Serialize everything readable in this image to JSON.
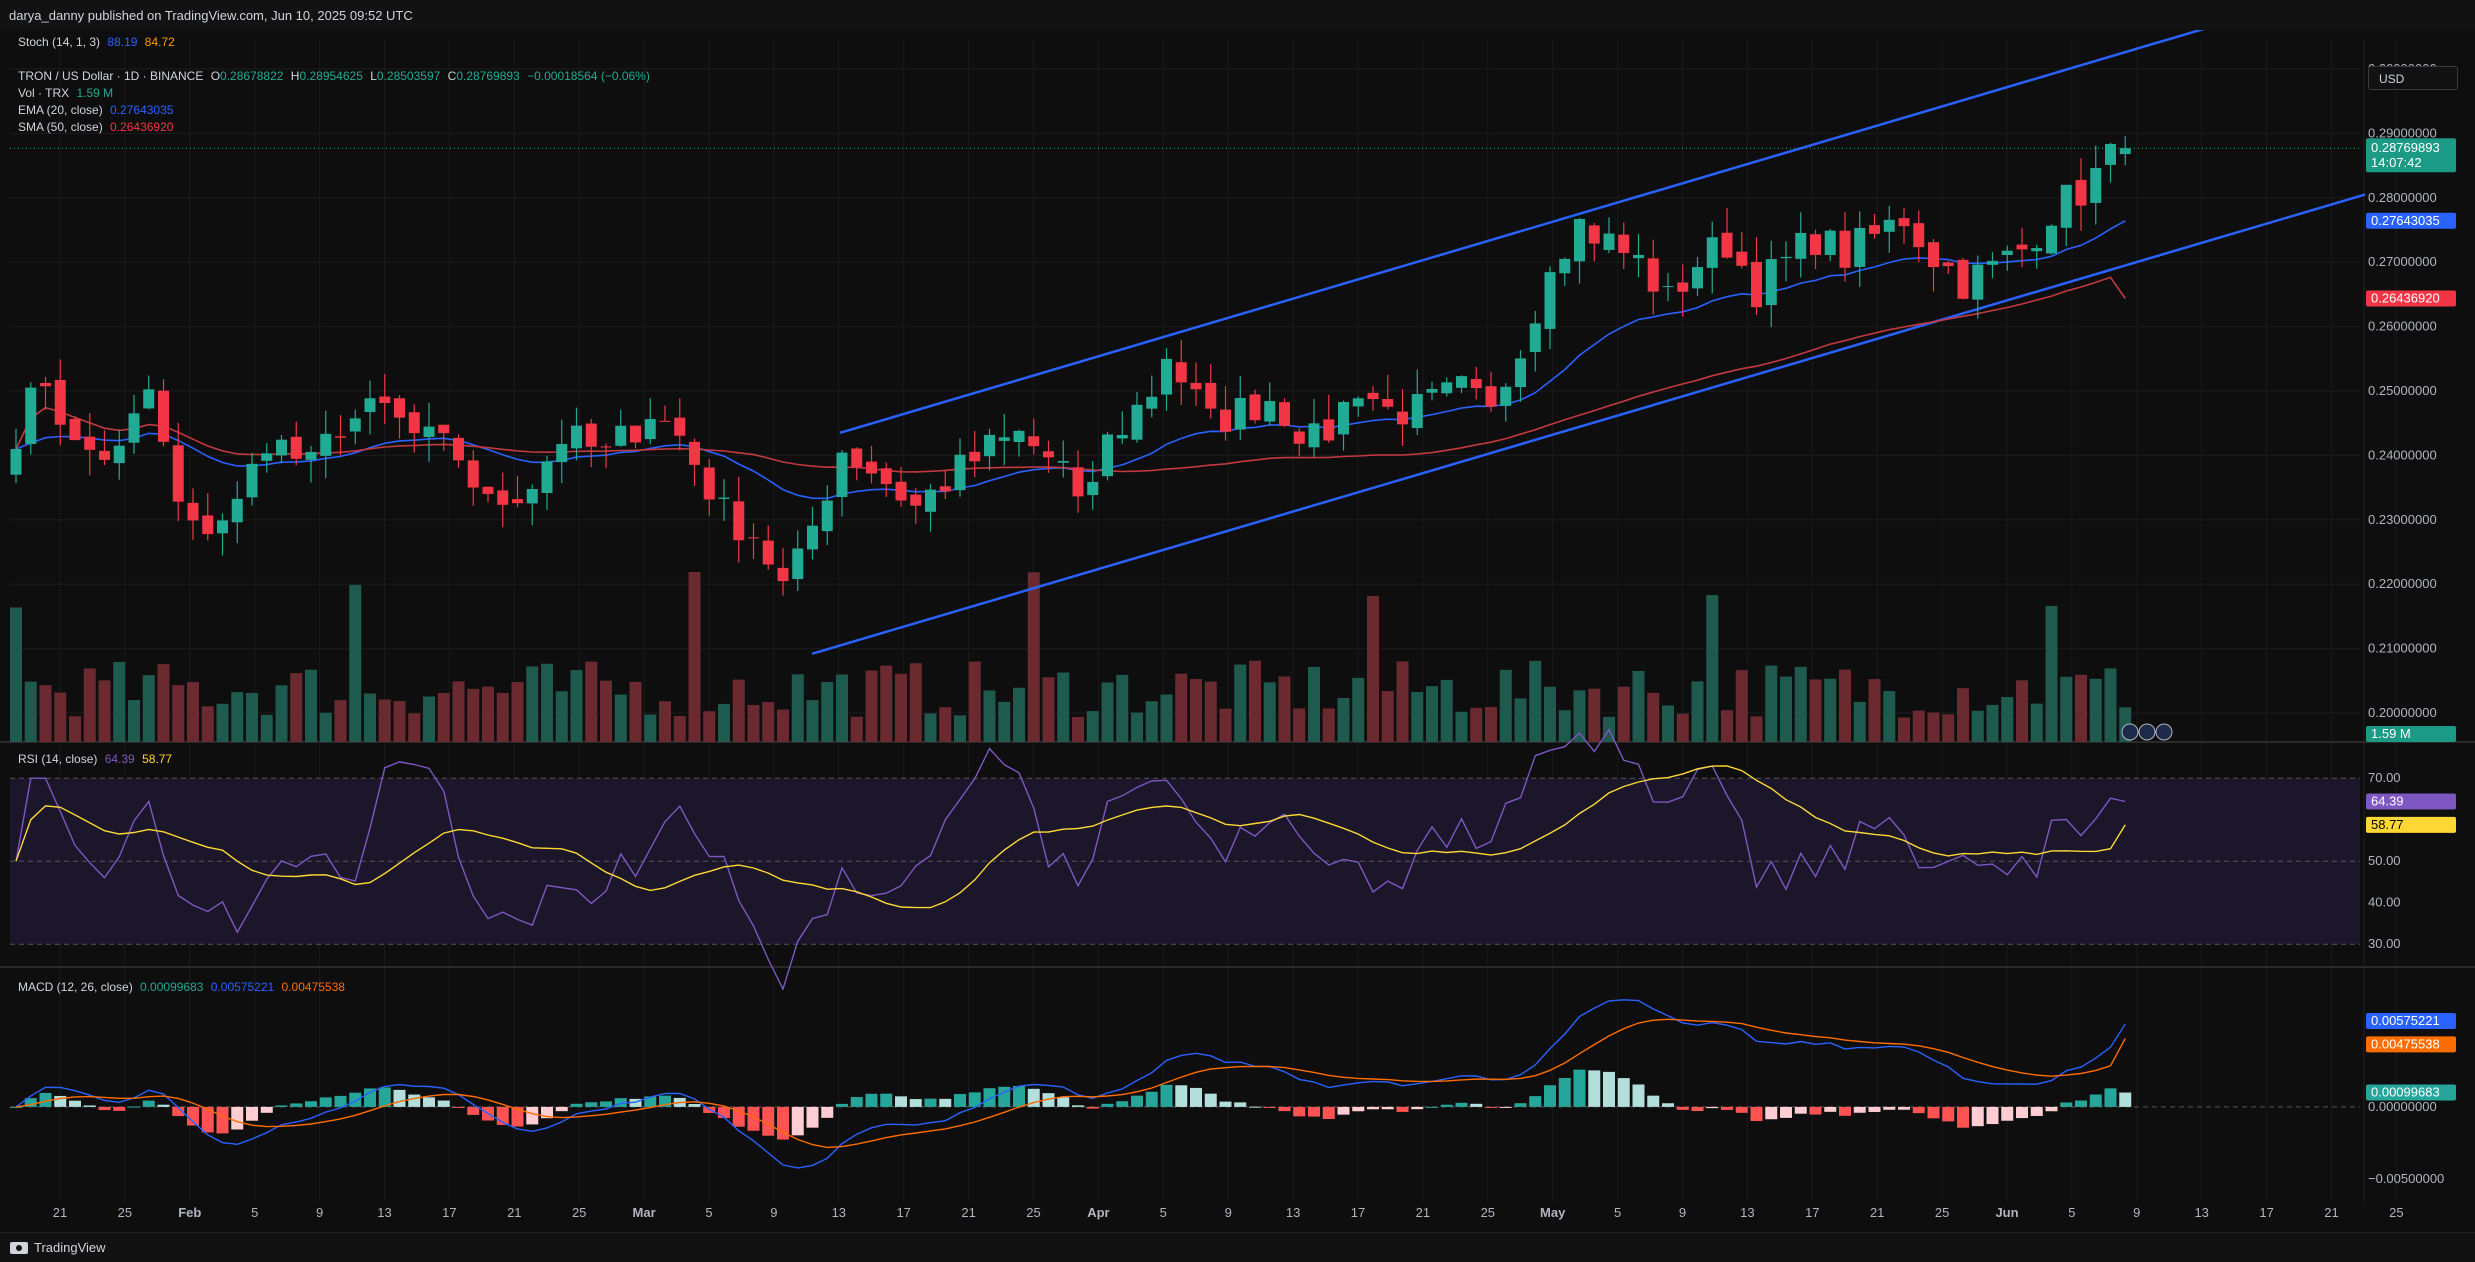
{
  "header": {
    "published": "darya_danny published on TradingView.com, Jun 10, 2025 09:52 UTC"
  },
  "footer": {
    "brand": "TradingView"
  },
  "currency_button": "USD",
  "colors": {
    "up": "#22ab94",
    "down": "#f23645",
    "ema": "#2962ff",
    "sma": "#f23645",
    "channel": "#2962ff",
    "rsi": "#7e57c2",
    "rsi_ma": "#fdd835",
    "macd": "#2962ff",
    "signal": "#ff6d00"
  },
  "legend": {
    "stoch": {
      "label": "Stoch (14, 1, 3)",
      "k": "88.19",
      "d": "84.72"
    },
    "symbol": "TRON / US Dollar · 1D · BINANCE",
    "ohlc": {
      "o_label": "O",
      "o": "0.28678822",
      "h_label": "H",
      "h": "0.28954625",
      "l_label": "L",
      "l": "0.28503597",
      "c_label": "C",
      "c": "0.28769893",
      "chg": "−0.00018564 (−0.06%)"
    },
    "vol": {
      "label": "Vol · TRX",
      "value": "1.59 M"
    },
    "ema": {
      "label": "EMA (20, close)",
      "value": "0.27643035"
    },
    "sma": {
      "label": "SMA (50, close)",
      "value": "0.26436920"
    },
    "rsi": {
      "label": "RSI (14, close)",
      "value": "64.39",
      "ma": "58.77"
    },
    "macd": {
      "label": "MACD (12, 26, close)",
      "hist": "0.00099683",
      "macd": "0.00575221",
      "signal": "0.00475538"
    }
  },
  "badges": {
    "price": "0.28769893",
    "countdown": "14:07:42",
    "ema": "0.27643035",
    "sma": "0.26436920",
    "vol": "1.59 M",
    "rsi": "64.39",
    "rsi_ma": "58.77",
    "macd": "0.00575221",
    "signal": "0.00475538",
    "hist": "0.00099683"
  },
  "chart_data": {
    "type": "candlestick",
    "symbol": "TRON / US Dollar",
    "timeframe": "1D",
    "price_axis": {
      "ticks": [
        "0.30000000",
        "0.29000000",
        "0.28000000",
        "0.27000000",
        "0.26000000",
        "0.25000000",
        "0.24000000",
        "0.23000000",
        "0.22000000",
        "0.21000000",
        "0.20000000"
      ],
      "range": [
        0.1955,
        0.3045
      ]
    },
    "rsi_axis": {
      "ticks": [
        "70.00",
        "50.00",
        "40.00",
        "30.00"
      ],
      "range": [
        25,
        78
      ]
    },
    "macd_axis": {
      "ticks": [
        "0.00000000",
        "−0.00500000"
      ],
      "range": [
        -0.0066,
        0.0095
      ]
    },
    "x_ticks": [
      "21",
      "25",
      "Feb",
      "5",
      "9",
      "13",
      "17",
      "21",
      "25",
      "Mar",
      "5",
      "9",
      "13",
      "17",
      "21",
      "25",
      "Apr",
      "5",
      "9",
      "13",
      "17",
      "21",
      "25",
      "May",
      "5",
      "9",
      "13",
      "17",
      "21",
      "25",
      "Jun",
      "5",
      "9",
      "13",
      "17",
      "21",
      "25"
    ],
    "channel_upper": [
      [
        0.2435,
        0.3095
      ],
      [
        0.0,
        1.0
      ]
    ],
    "channel_lower": [
      [
        0.2092,
        0.2805
      ],
      [
        0.0,
        1.0
      ]
    ],
    "ohlc_note": "Daily candles from Jan 18 to Jun 10, 2025 (pattern estimated)"
  }
}
